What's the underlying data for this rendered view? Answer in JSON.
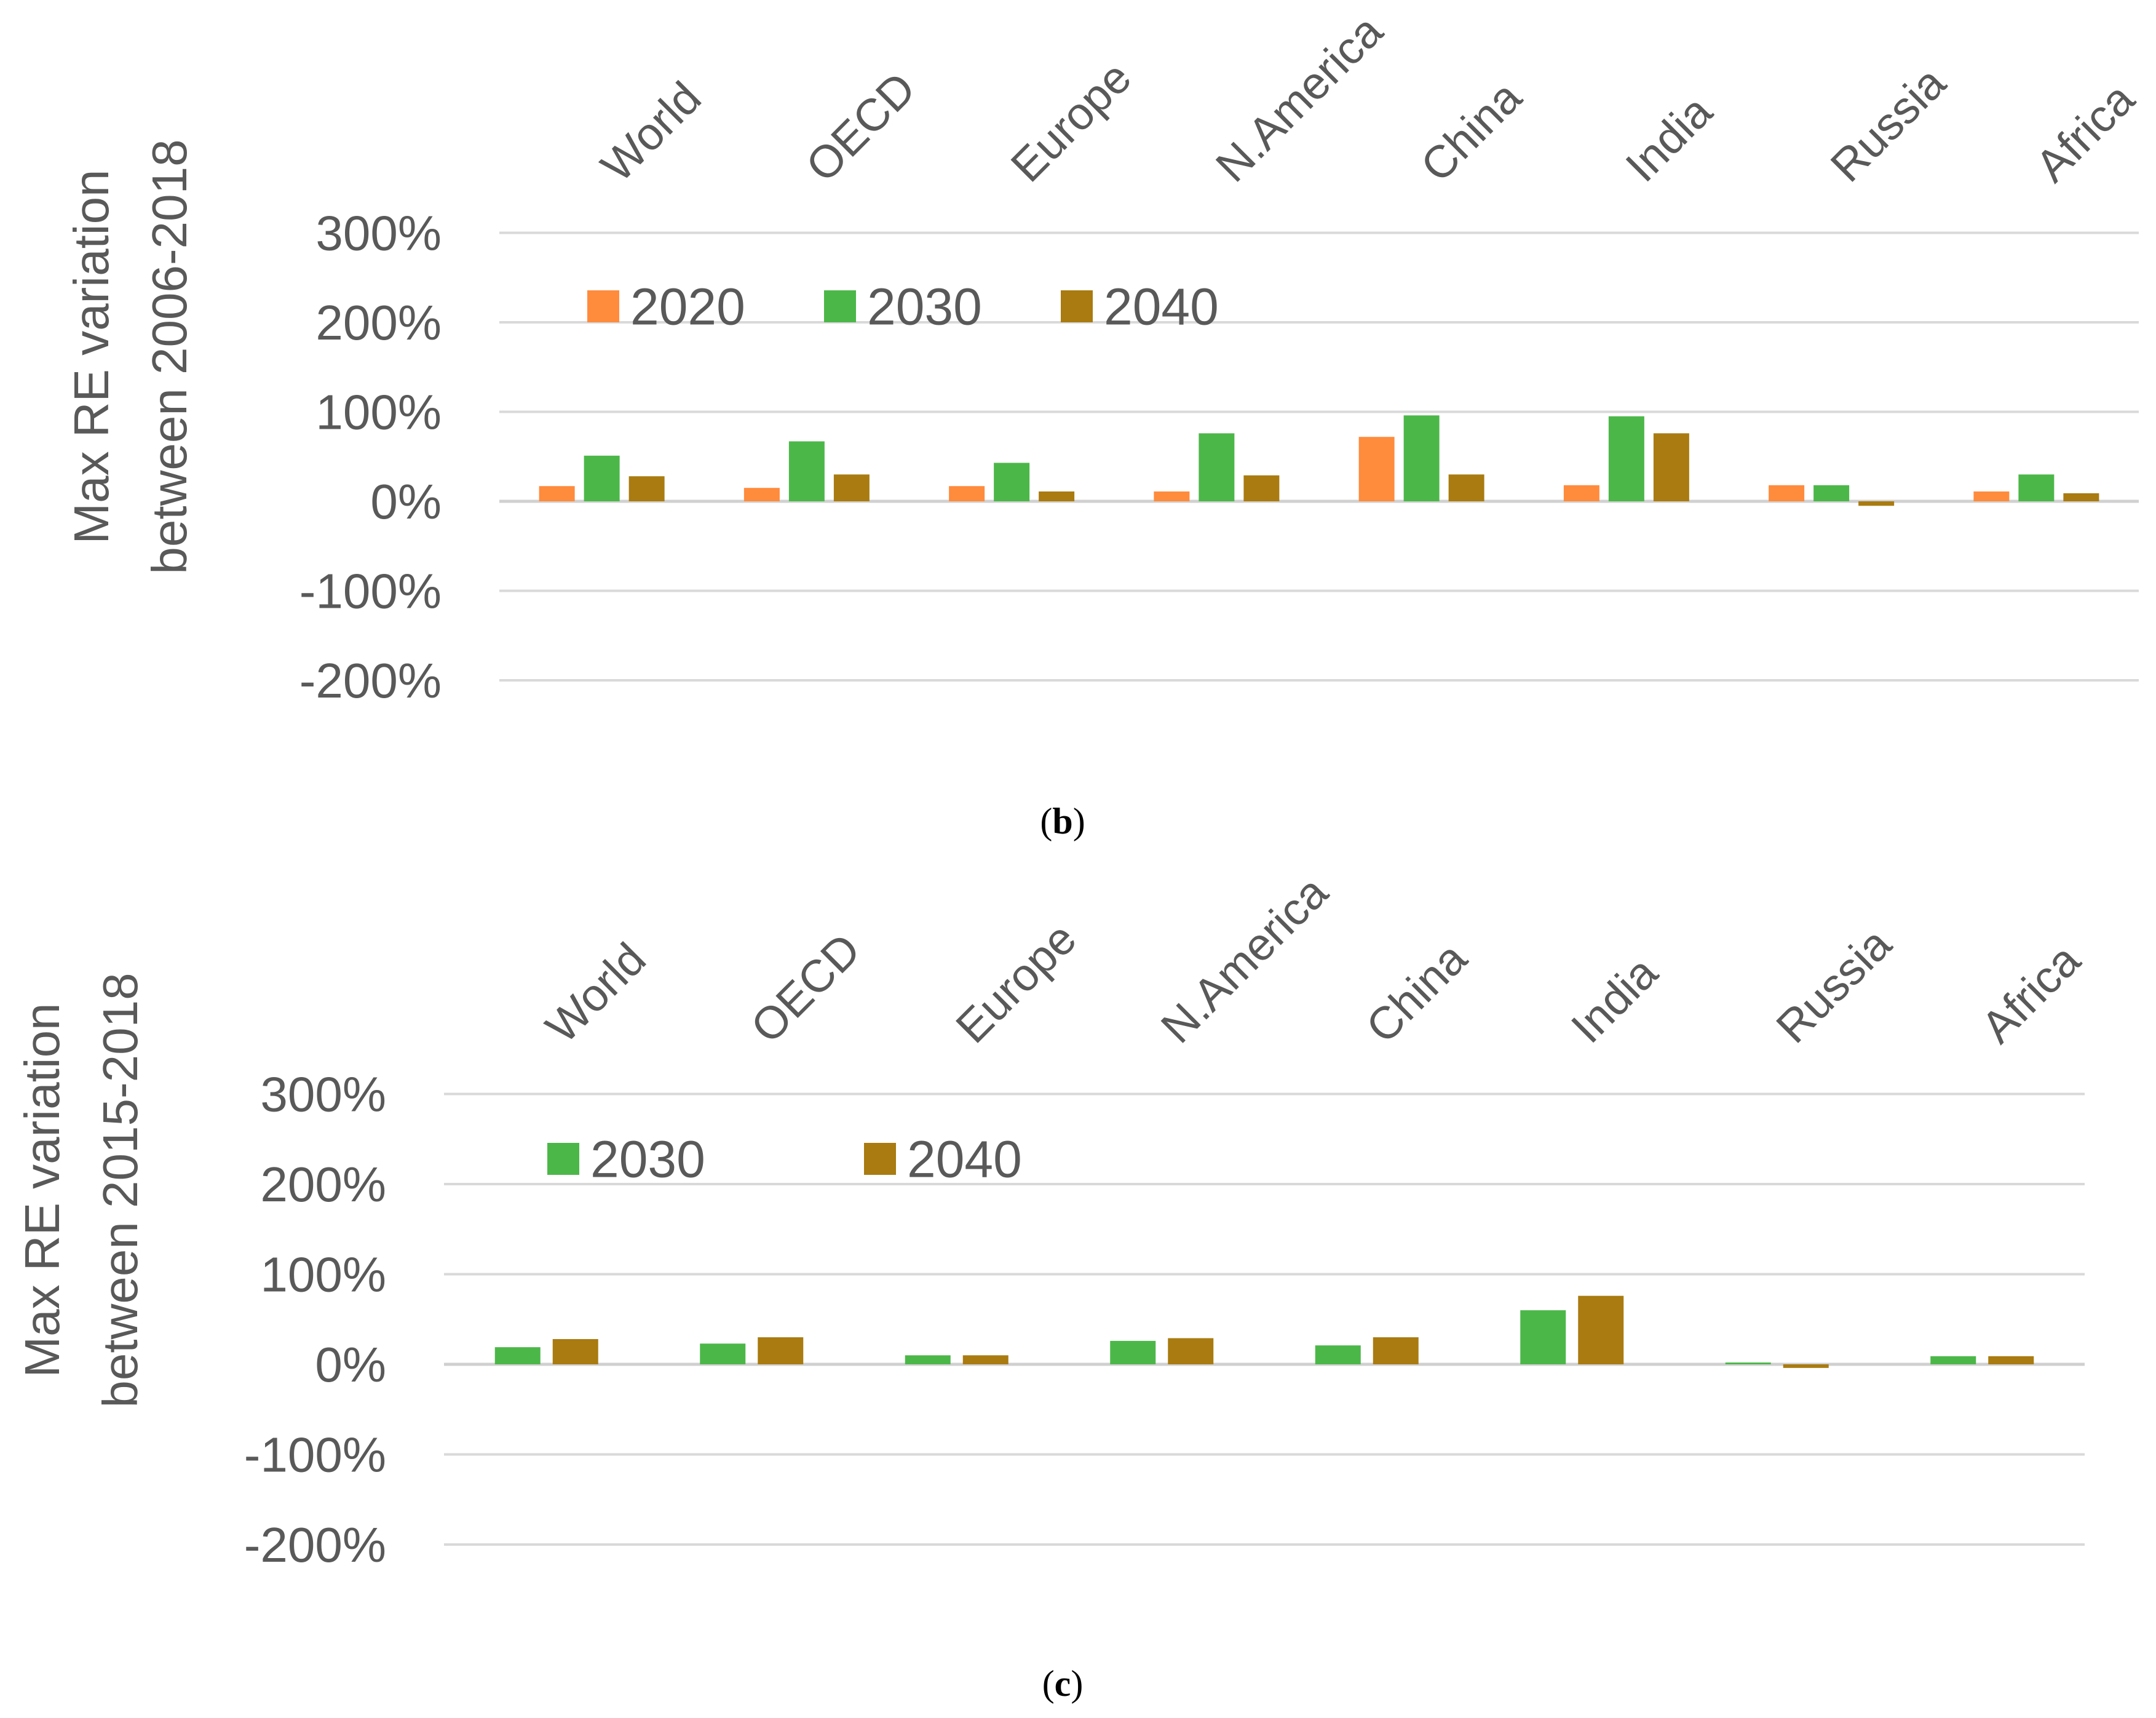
{
  "chart_data": [
    {
      "type": "bar",
      "caption_prefix": "(",
      "caption_letter": "b",
      "caption_suffix": ")",
      "ylabel_line1": "Max RE variation",
      "ylabel_line2": "between 2006-2018",
      "ylim": [
        -200,
        300
      ],
      "yticks": [
        "300%",
        "200%",
        "100%",
        "0%",
        "-100%",
        "-200%"
      ],
      "ytick_values": [
        300,
        200,
        100,
        0,
        -100,
        -200
      ],
      "categories": [
        "World",
        "OECD",
        "Europe",
        "N.America",
        "China",
        "India",
        "Russia",
        "Africa"
      ],
      "legend_position": "top-left",
      "series": [
        {
          "name": "2020",
          "color": "#ff8b3d",
          "values": [
            17,
            15,
            17,
            11,
            72,
            18,
            18,
            11
          ]
        },
        {
          "name": "2030",
          "color": "#4cb749",
          "values": [
            51,
            67,
            43,
            76,
            96,
            95,
            18,
            30
          ]
        },
        {
          "name": "2040",
          "color": "#a97b10",
          "values": [
            28,
            30,
            11,
            29,
            30,
            76,
            -5,
            9
          ]
        }
      ]
    },
    {
      "type": "bar",
      "caption_prefix": "(",
      "caption_letter": "c",
      "caption_suffix": ")",
      "ylabel_line1": "Max RE variation",
      "ylabel_line2": "between 2015-2018",
      "ylim": [
        -200,
        300
      ],
      "yticks": [
        "300%",
        "200%",
        "100%",
        "0%",
        "-100%",
        "-200%"
      ],
      "ytick_values": [
        300,
        200,
        100,
        0,
        -100,
        -200
      ],
      "categories": [
        "World",
        "OECD",
        "Europe",
        "N.America",
        "China",
        "India",
        "Russia",
        "Africa"
      ],
      "legend_position": "top-left",
      "series": [
        {
          "name": "2030",
          "color": "#4cb749",
          "values": [
            19,
            23,
            10,
            26,
            21,
            60,
            2,
            9
          ]
        },
        {
          "name": "2040",
          "color": "#a97b10",
          "values": [
            28,
            30,
            10,
            29,
            30,
            76,
            -4,
            9
          ]
        }
      ]
    }
  ]
}
